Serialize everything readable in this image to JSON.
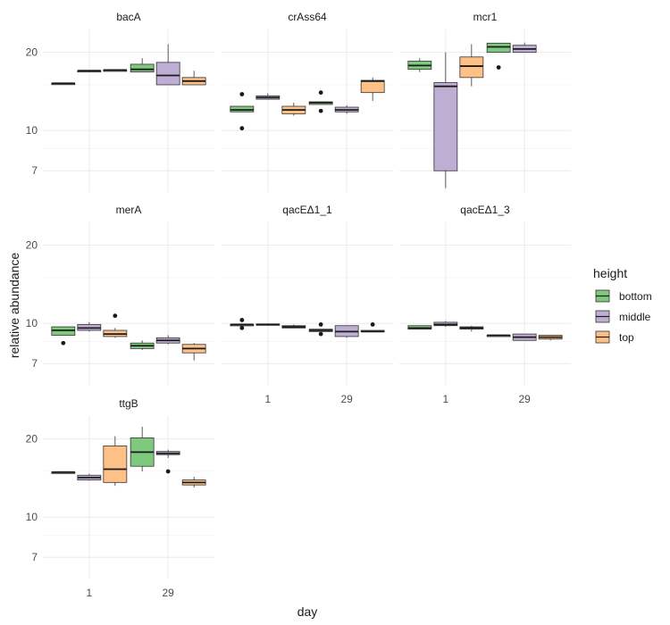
{
  "chart_data": {
    "type": "boxplot",
    "facet_layout": "3 columns x 3 rows, shared axes",
    "xlabel": "day",
    "ylabel": "relative abundance",
    "y_scale": "log",
    "ylim": [
      5.8,
      24.5
    ],
    "y_ticks": [
      7,
      10,
      20
    ],
    "x_categories": [
      "1",
      "29"
    ],
    "grid": true,
    "legend": {
      "title": "height",
      "position": "right",
      "entries": [
        {
          "name": "bottom",
          "color": "#7fc97f"
        },
        {
          "name": "middle",
          "color": "#beaed4"
        },
        {
          "name": "top",
          "color": "#fdc086"
        }
      ]
    },
    "panels": [
      {
        "title": "bacA",
        "boxes": [
          {
            "day": "1",
            "group": "bottom",
            "min": 15.2,
            "q1": 15.2,
            "median": 15.2,
            "q3": 15.2,
            "max": 15.2,
            "outliers": []
          },
          {
            "day": "1",
            "group": "middle",
            "min": 16.9,
            "q1": 16.9,
            "median": 17.0,
            "q3": 17.0,
            "max": 17.0,
            "outliers": []
          },
          {
            "day": "1",
            "group": "top",
            "min": 17.0,
            "q1": 17.0,
            "median": 17.1,
            "q3": 17.1,
            "max": 17.1,
            "outliers": []
          },
          {
            "day": "29",
            "group": "bottom",
            "min": 16.8,
            "q1": 16.8,
            "median": 17.2,
            "q3": 18.0,
            "max": 19.0,
            "outliers": []
          },
          {
            "day": "29",
            "group": "middle",
            "min": 15.0,
            "q1": 15.0,
            "median": 16.3,
            "q3": 18.3,
            "max": 21.5,
            "outliers": []
          },
          {
            "day": "29",
            "group": "top",
            "min": 15.0,
            "q1": 15.0,
            "median": 15.5,
            "q3": 16.0,
            "max": 17.0,
            "outliers": []
          }
        ]
      },
      {
        "title": "crAss64",
        "boxes": [
          {
            "day": "1",
            "group": "bottom",
            "min": 11.8,
            "q1": 11.8,
            "median": 12.0,
            "q3": 12.4,
            "max": 12.4,
            "outliers": [
              13.8,
              10.2
            ]
          },
          {
            "day": "1",
            "group": "middle",
            "min": 13.2,
            "q1": 13.2,
            "median": 13.4,
            "q3": 13.6,
            "max": 13.9,
            "outliers": []
          },
          {
            "day": "1",
            "group": "top",
            "min": 11.4,
            "q1": 11.6,
            "median": 12.0,
            "q3": 12.4,
            "max": 12.8,
            "outliers": []
          },
          {
            "day": "29",
            "group": "bottom",
            "min": 12.6,
            "q1": 12.6,
            "median": 12.8,
            "q3": 12.9,
            "max": 12.9,
            "outliers": [
              14.0,
              11.9
            ]
          },
          {
            "day": "29",
            "group": "middle",
            "min": 11.6,
            "q1": 11.8,
            "median": 12.0,
            "q3": 12.3,
            "max": 12.5,
            "outliers": []
          },
          {
            "day": "29",
            "group": "top",
            "min": 13.0,
            "q1": 14.0,
            "median": 15.5,
            "q3": 15.6,
            "max": 16.0,
            "outliers": []
          }
        ]
      },
      {
        "title": "mcr1",
        "boxes": [
          {
            "day": "1",
            "group": "bottom",
            "min": 16.8,
            "q1": 17.2,
            "median": 17.8,
            "q3": 18.5,
            "max": 19.0,
            "outliers": []
          },
          {
            "day": "1",
            "group": "middle",
            "min": 6.0,
            "q1": 7.0,
            "median": 14.8,
            "q3": 15.3,
            "max": 20.0,
            "outliers": []
          },
          {
            "day": "1",
            "group": "top",
            "min": 14.8,
            "q1": 16.0,
            "median": 17.7,
            "q3": 19.2,
            "max": 21.5,
            "outliers": []
          },
          {
            "day": "29",
            "group": "bottom",
            "min": 20.0,
            "q1": 20.0,
            "median": 21.0,
            "q3": 21.7,
            "max": 21.7,
            "outliers": [
              17.5
            ]
          },
          {
            "day": "29",
            "group": "middle",
            "min": 20.0,
            "q1": 20.0,
            "median": 20.6,
            "q3": 21.3,
            "max": 21.8,
            "outliers": []
          }
        ]
      },
      {
        "title": "merA",
        "boxes": [
          {
            "day": "1",
            "group": "bottom",
            "min": 9.0,
            "q1": 9.0,
            "median": 9.4,
            "q3": 9.7,
            "max": 9.7,
            "outliers": [
              8.4
            ]
          },
          {
            "day": "1",
            "group": "middle",
            "min": 9.3,
            "q1": 9.4,
            "median": 9.6,
            "q3": 9.9,
            "max": 10.1,
            "outliers": []
          },
          {
            "day": "1",
            "group": "top",
            "min": 8.8,
            "q1": 8.9,
            "median": 9.1,
            "q3": 9.4,
            "max": 9.6,
            "outliers": [
              10.7
            ]
          },
          {
            "day": "29",
            "group": "bottom",
            "min": 7.9,
            "q1": 8.0,
            "median": 8.2,
            "q3": 8.4,
            "max": 8.6,
            "outliers": []
          },
          {
            "day": "29",
            "group": "middle",
            "min": 8.3,
            "q1": 8.4,
            "median": 8.6,
            "q3": 8.8,
            "max": 9.0,
            "outliers": []
          },
          {
            "day": "29",
            "group": "top",
            "min": 7.2,
            "q1": 7.7,
            "median": 8.0,
            "q3": 8.3,
            "max": 8.4,
            "outliers": []
          }
        ]
      },
      {
        "title": "qacEΔ1_1",
        "boxes": [
          {
            "day": "1",
            "group": "bottom",
            "min": 9.9,
            "q1": 9.9,
            "median": 9.9,
            "q3": 9.9,
            "max": 9.9,
            "outliers": [
              10.3,
              9.6
            ]
          },
          {
            "day": "1",
            "group": "middle",
            "min": 9.8,
            "q1": 9.85,
            "median": 9.9,
            "q3": 9.95,
            "max": 10.0,
            "outliers": []
          },
          {
            "day": "1",
            "group": "top",
            "min": 9.6,
            "q1": 9.6,
            "median": 9.7,
            "q3": 9.8,
            "max": 9.9,
            "outliers": []
          },
          {
            "day": "29",
            "group": "bottom",
            "min": 9.3,
            "q1": 9.3,
            "median": 9.4,
            "q3": 9.5,
            "max": 9.5,
            "outliers": [
              9.9,
              9.1
            ]
          },
          {
            "day": "29",
            "group": "middle",
            "min": 8.8,
            "q1": 8.9,
            "median": 9.3,
            "q3": 9.8,
            "max": 9.8,
            "outliers": []
          },
          {
            "day": "29",
            "group": "top",
            "min": 9.3,
            "q1": 9.3,
            "median": 9.3,
            "q3": 9.4,
            "max": 9.4,
            "outliers": [
              9.9
            ]
          }
        ]
      },
      {
        "title": "qacEΔ1_3",
        "boxes": [
          {
            "day": "1",
            "group": "bottom",
            "min": 9.5,
            "q1": 9.5,
            "median": 9.6,
            "q3": 9.8,
            "max": 9.8,
            "outliers": []
          },
          {
            "day": "1",
            "group": "middle",
            "min": 9.7,
            "q1": 9.8,
            "median": 9.9,
            "q3": 10.1,
            "max": 10.2,
            "outliers": []
          },
          {
            "day": "1",
            "group": "top",
            "min": 9.3,
            "q1": 9.5,
            "median": 9.6,
            "q3": 9.7,
            "max": 9.8,
            "outliers": []
          },
          {
            "day": "29",
            "group": "bottom",
            "min": 8.9,
            "q1": 8.9,
            "median": 9.0,
            "q3": 9.0,
            "max": 9.0,
            "outliers": []
          },
          {
            "day": "29",
            "group": "middle",
            "min": 8.6,
            "q1": 8.6,
            "median": 8.85,
            "q3": 9.1,
            "max": 9.1,
            "outliers": []
          },
          {
            "day": "29",
            "group": "top",
            "min": 8.6,
            "q1": 8.7,
            "median": 8.85,
            "q3": 9.0,
            "max": 9.0,
            "outliers": []
          }
        ]
      },
      {
        "title": "ttgB",
        "boxes": [
          {
            "day": "1",
            "group": "bottom",
            "min": 14.9,
            "q1": 14.9,
            "median": 14.9,
            "q3": 14.9,
            "max": 14.9,
            "outliers": []
          },
          {
            "day": "1",
            "group": "middle",
            "min": 13.8,
            "q1": 13.9,
            "median": 14.2,
            "q3": 14.5,
            "max": 14.7,
            "outliers": []
          },
          {
            "day": "1",
            "group": "top",
            "min": 13.2,
            "q1": 13.6,
            "median": 15.3,
            "q3": 18.8,
            "max": 20.5,
            "outliers": []
          },
          {
            "day": "29",
            "group": "bottom",
            "min": 15.0,
            "q1": 15.7,
            "median": 17.8,
            "q3": 20.2,
            "max": 22.3,
            "outliers": []
          },
          {
            "day": "29",
            "group": "middle",
            "min": 16.9,
            "q1": 17.4,
            "median": 17.6,
            "q3": 17.9,
            "max": 18.2,
            "outliers": [
              15.0
            ]
          },
          {
            "day": "29",
            "group": "top",
            "min": 13.0,
            "q1": 13.3,
            "median": 13.6,
            "q3": 13.9,
            "max": 14.3,
            "outliers": []
          }
        ]
      }
    ]
  }
}
